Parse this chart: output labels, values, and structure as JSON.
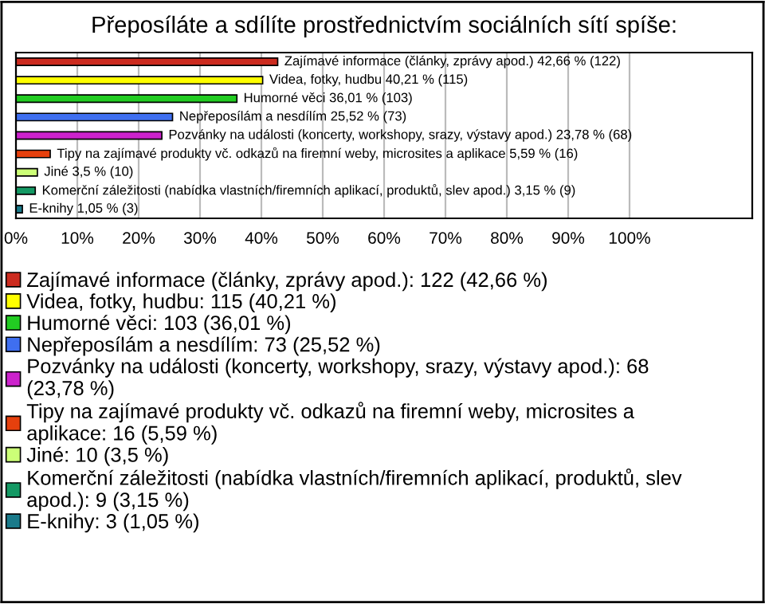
{
  "chart_data": {
    "type": "bar",
    "orientation": "horizontal",
    "title": "Přeposíláte a sdílíte prostřednictvím sociálních sítí spíše:",
    "categories": [
      null,
      null,
      null,
      null,
      null,
      null,
      null,
      null,
      null
    ],
    "series": [
      {
        "name": "Zajímavé informace (články, zprávy apod.): 122 (42,66 %)",
        "color": "#cc2b1f",
        "values": [
          42.66,
          null,
          null,
          null,
          null,
          null,
          null,
          null,
          null
        ],
        "value_labels": [
          "Zajímavé informace (články, zprávy apod.) 42,66 % (122)",
          null,
          null,
          null,
          null,
          null,
          null,
          null,
          null
        ]
      },
      {
        "name": "Videa, fotky, hudbu: 115 (40,21 %)",
        "color": "#ffff00",
        "values": [
          null,
          40.21,
          null,
          null,
          null,
          null,
          null,
          null,
          null
        ],
        "value_labels": [
          null,
          "Videa, fotky, hudbu 40,21 % (115)",
          null,
          null,
          null,
          null,
          null,
          null,
          null
        ]
      },
      {
        "name": "Humorné věci: 103 (36,01 %)",
        "color": "#22cc22",
        "values": [
          null,
          null,
          36.01,
          null,
          null,
          null,
          null,
          null,
          null
        ],
        "value_labels": [
          null,
          null,
          "Humorné věci 36,01 % (103)",
          null,
          null,
          null,
          null,
          null,
          null
        ]
      },
      {
        "name": "Nepřeposílám a nesdílím: 73 (25,52 %)",
        "color": "#3f6ff0",
        "values": [
          null,
          null,
          null,
          25.52,
          null,
          null,
          null,
          null,
          null
        ],
        "value_labels": [
          null,
          null,
          null,
          "Nepřeposílám a nesdílím 25,52 % (73)",
          null,
          null,
          null,
          null,
          null
        ]
      },
      {
        "name": "Pozvánky na události (koncerty, workshopy, srazy, výstavy apod.): 68\n(23,78 %)",
        "color": "#cc22cc",
        "values": [
          null,
          null,
          null,
          null,
          23.78,
          null,
          null,
          null,
          null
        ],
        "value_labels": [
          null,
          null,
          null,
          null,
          "Pozvánky na události (koncerty, workshopy, srazy, výstavy apod.) 23,78 % (68)",
          null,
          null,
          null,
          null
        ]
      },
      {
        "name": "Tipy na zajímavé produkty vč. odkazů na firemní weby, microsites a\naplikace: 16 (5,59 %)",
        "color": "#e6400d",
        "values": [
          null,
          null,
          null,
          null,
          null,
          5.59,
          null,
          null,
          null
        ],
        "value_labels": [
          null,
          null,
          null,
          null,
          null,
          "Tipy na zajímavé produkty vč. odkazů na firemní weby, microsites a aplikace 5,59 % (16)",
          null,
          null,
          null
        ]
      },
      {
        "name": "Jiné: 10 (3,5 %)",
        "color": "#ccff77",
        "values": [
          null,
          null,
          null,
          null,
          null,
          null,
          3.5,
          null,
          null
        ],
        "value_labels": [
          null,
          null,
          null,
          null,
          null,
          null,
          "Jiné 3,5 % (10)",
          null,
          null
        ]
      },
      {
        "name": "Komerční záležitosti (nabídka vlastních/firemních aplikací, produktů, slev\napod.): 9 (3,15 %)",
        "color": "#149964",
        "values": [
          null,
          null,
          null,
          null,
          null,
          null,
          null,
          3.15,
          null
        ],
        "value_labels": [
          null,
          null,
          null,
          null,
          null,
          null,
          null,
          "Komerční záležitosti (nabídka vlastních/firemních aplikací, produktů, slev apod.) 3,15 % (9)",
          null
        ]
      },
      {
        "name": "E-knihy: 3 (1,05 %)",
        "color": "#1a7a8a",
        "values": [
          null,
          null,
          null,
          null,
          null,
          null,
          null,
          null,
          1.05
        ],
        "value_labels": [
          null,
          null,
          null,
          null,
          null,
          null,
          null,
          null,
          "E-knihy 1,05 % (3)"
        ]
      }
    ],
    "xlim": [
      0,
      120
    ],
    "xticks": [
      {
        "value": 0,
        "label": "0%"
      },
      {
        "value": 10,
        "label": "10%"
      },
      {
        "value": 20,
        "label": "20%"
      },
      {
        "value": 30,
        "label": "30%"
      },
      {
        "value": 40,
        "label": "40%"
      },
      {
        "value": 50,
        "label": "50%"
      },
      {
        "value": 60,
        "label": "60%"
      },
      {
        "value": 70,
        "label": "70%"
      },
      {
        "value": 80,
        "label": "80%"
      },
      {
        "value": 90,
        "label": "90%"
      },
      {
        "value": 100,
        "label": "100%"
      }
    ],
    "grid": "x",
    "legend": "bottom"
  }
}
